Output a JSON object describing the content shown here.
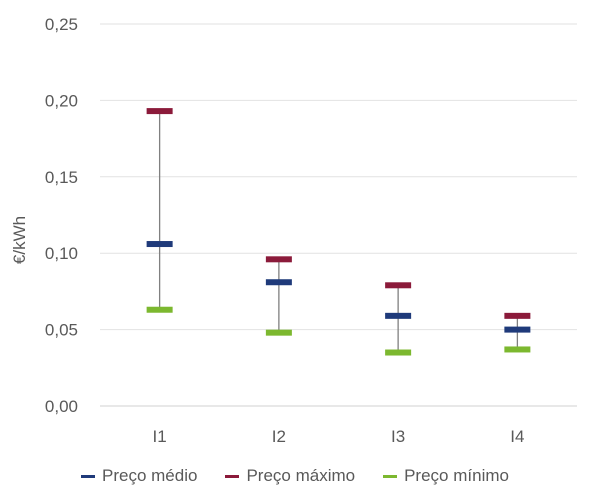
{
  "chart_data": {
    "type": "stock-range",
    "categories": [
      "I1",
      "I2",
      "I3",
      "I4"
    ],
    "ylabel": "€/kWh",
    "ylim": [
      0,
      0.25
    ],
    "yticks": [
      "0,00",
      "0,05",
      "0,10",
      "0,15",
      "0,20",
      "0,25"
    ],
    "ytick_values": [
      0,
      0.05,
      0.1,
      0.15,
      0.2,
      0.25
    ],
    "grid": true,
    "legend_position": "bottom",
    "series": [
      {
        "name": "Preço médio",
        "color": "#1f3a7a",
        "values": [
          0.106,
          0.081,
          0.059,
          0.05
        ]
      },
      {
        "name": "Preço máximo",
        "color": "#8b1a3a",
        "values": [
          0.193,
          0.096,
          0.079,
          0.059
        ]
      },
      {
        "name": "Preço mínimo",
        "color": "#7cb82f",
        "values": [
          0.063,
          0.048,
          0.035,
          0.037
        ]
      }
    ],
    "range_line_color": "#808080"
  }
}
